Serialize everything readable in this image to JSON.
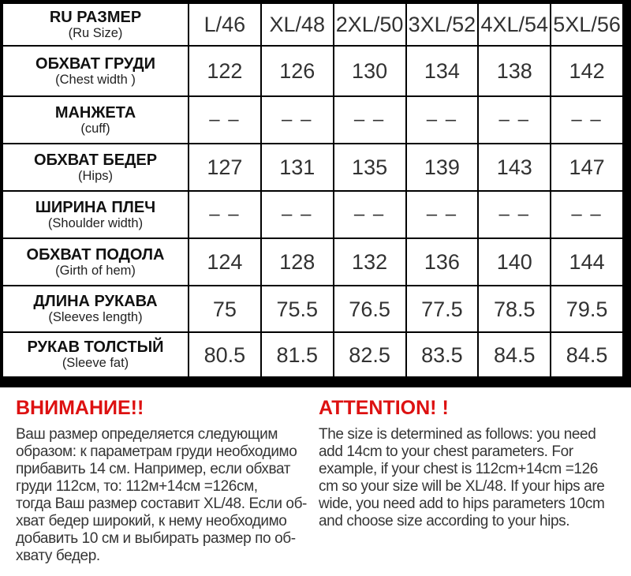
{
  "colors": {
    "accent_red": "#dd1111",
    "table_border": "#000000",
    "table_text": "#323232",
    "background": "#ffffff"
  },
  "table": {
    "header": {
      "label_ru": "RU РАЗМЕР",
      "label_en": "(Ru Size)",
      "sizes": [
        "L/46",
        "XL/48",
        "2XL/50",
        "3XL/52",
        "4XL/54",
        "5XL/56"
      ]
    },
    "rows": [
      {
        "label_ru": "ОБХВАТ ГРУДИ",
        "label_en": "(Chest width )",
        "values": [
          "122",
          "126",
          "130",
          "134",
          "138",
          "142"
        ]
      },
      {
        "label_ru": "МАНЖЕТА",
        "label_en": "(cuff)",
        "values": [
          "– –",
          "– –",
          "– –",
          "– –",
          "– –",
          "– –"
        ]
      },
      {
        "label_ru": "ОБХВАТ БЕДЕР",
        "label_en": "(Hips)",
        "values": [
          "127",
          "131",
          "135",
          "139",
          "143",
          "147"
        ]
      },
      {
        "label_ru": "ШИРИНА ПЛЕЧ",
        "label_en": "(Shoulder width)",
        "values": [
          "– –",
          "– –",
          "– –",
          "– –",
          "– –",
          "– –"
        ]
      },
      {
        "label_ru": "ОБХВАТ ПОДОЛА",
        "label_en": "(Girth of hem)",
        "values": [
          "124",
          "128",
          "132",
          "136",
          "140",
          "144"
        ]
      },
      {
        "label_ru": "ДЛИНА РУКАВА",
        "label_en": "(Sleeves length)",
        "values": [
          "75",
          "75.5",
          "76.5",
          "77.5",
          "78.5",
          "79.5"
        ]
      },
      {
        "label_ru": "РУКАВ ТОЛСТЫЙ",
        "label_en": "(Sleeve fat)",
        "values": [
          "80.5",
          "81.5",
          "82.5",
          "83.5",
          "84.5",
          "84.5"
        ]
      }
    ]
  },
  "notes": {
    "ru": {
      "heading": "ВНИМАНИЕ!!",
      "body": "Ваш размер определяется следующим\nобразом: к параметрам груди необходимо\nприбавить 14 см. Например, если обхват\nгруди  112см, то: 112м+14см =126см,\nтогда Ваш размер составит XL/48. Если об-\nхват бедер широкий, к нему необходимо\nдобавить 10 см и выбирать размер по об-\nхвату бедер."
    },
    "en": {
      "heading": "ATTENTION! !",
      "body": "The size is determined as follows: you need\nadd 14cm to your chest parameters. For\nexample, if your chest is 112cm+14cm =126\ncm so your size will be XL/48. If your hips are\nwide, you need add to hips parameters 10cm\nand choose size according to your hips."
    }
  }
}
